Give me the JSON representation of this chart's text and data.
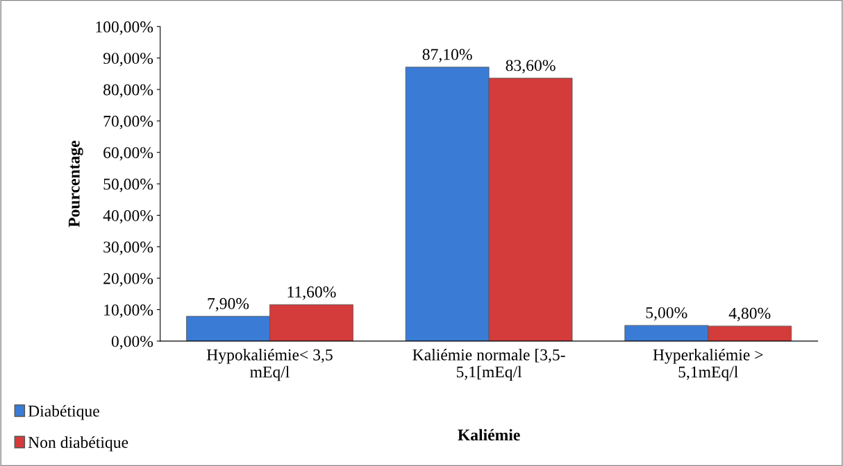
{
  "chart_data": {
    "type": "bar",
    "xlabel": "Kaliémie",
    "ylabel": "Pourcentage",
    "categories": [
      "Hypokaliémie< 3,5\nmEq/l",
      "Kaliémie normale [3,5-\n5,1[mEq/l",
      "Hyperkaliémie >\n5,1mEq/l"
    ],
    "series": [
      {
        "name": "Diabétique",
        "color": "#3a7bd5",
        "values": [
          7.9,
          87.1,
          5.0
        ],
        "value_labels": [
          "7,90%",
          "87,10%",
          "5,00%"
        ]
      },
      {
        "name": "Non diabétique",
        "color": "#d43b3b",
        "values": [
          11.6,
          83.6,
          4.8
        ],
        "value_labels": [
          "11,60%",
          "83,60%",
          "4,80%"
        ]
      }
    ],
    "ylim": [
      0,
      100
    ],
    "yticks": [
      {
        "value": 0,
        "label": "0,00%"
      },
      {
        "value": 10,
        "label": "10,00%"
      },
      {
        "value": 20,
        "label": "20,00%"
      },
      {
        "value": 30,
        "label": "30,00%"
      },
      {
        "value": 40,
        "label": "40,00%"
      },
      {
        "value": 50,
        "label": "50,00%"
      },
      {
        "value": 60,
        "label": "60,00%"
      },
      {
        "value": 70,
        "label": "70,00%"
      },
      {
        "value": 80,
        "label": "80,00%"
      },
      {
        "value": 90,
        "label": "90,00%"
      },
      {
        "value": 100,
        "label": "100,00%"
      }
    ],
    "grid": false,
    "legend": "bottom left"
  }
}
